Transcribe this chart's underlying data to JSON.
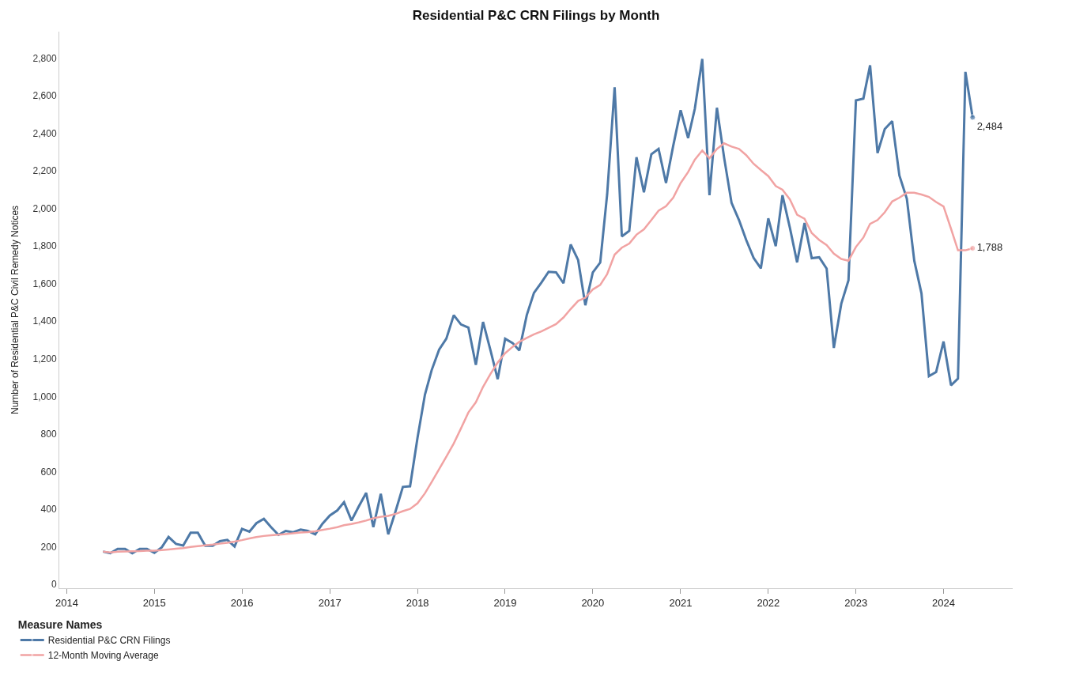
{
  "chart_data": {
    "type": "line",
    "title": "Residential P&C CRN Filings by Month",
    "ylabel": "Number of Residential P&C Civil Remedy Notices",
    "legend_title": "Measure Names",
    "x": [
      "2014-06",
      "2014-07",
      "2014-08",
      "2014-09",
      "2014-10",
      "2014-11",
      "2014-12",
      "2015-01",
      "2015-02",
      "2015-03",
      "2015-04",
      "2015-05",
      "2015-06",
      "2015-07",
      "2015-08",
      "2015-09",
      "2015-10",
      "2015-11",
      "2015-12",
      "2016-01",
      "2016-02",
      "2016-03",
      "2016-04",
      "2016-05",
      "2016-06",
      "2016-07",
      "2016-08",
      "2016-09",
      "2016-10",
      "2016-11",
      "2016-12",
      "2017-01",
      "2017-02",
      "2017-03",
      "2017-04",
      "2017-05",
      "2017-06",
      "2017-07",
      "2017-08",
      "2017-09",
      "2017-10",
      "2017-11",
      "2017-12",
      "2018-01",
      "2018-02",
      "2018-03",
      "2018-04",
      "2018-05",
      "2018-06",
      "2018-07",
      "2018-08",
      "2018-09",
      "2018-10",
      "2018-11",
      "2018-12",
      "2019-01",
      "2019-02",
      "2019-03",
      "2019-04",
      "2019-05",
      "2019-06",
      "2019-07",
      "2019-08",
      "2019-09",
      "2019-10",
      "2019-11",
      "2019-12",
      "2020-01",
      "2020-02",
      "2020-03",
      "2020-04",
      "2020-05",
      "2020-06",
      "2020-07",
      "2020-08",
      "2020-09",
      "2020-10",
      "2020-11",
      "2020-12",
      "2021-01",
      "2021-02",
      "2021-03",
      "2021-04",
      "2021-05",
      "2021-06",
      "2021-07",
      "2021-08",
      "2021-09",
      "2021-10",
      "2021-11",
      "2021-12",
      "2022-01",
      "2022-02",
      "2022-03",
      "2022-04",
      "2022-05",
      "2022-06",
      "2022-07",
      "2022-08",
      "2022-09",
      "2022-10",
      "2022-11",
      "2022-12",
      "2023-01",
      "2023-02",
      "2023-03",
      "2023-04",
      "2023-05",
      "2023-06",
      "2023-07",
      "2023-08",
      "2023-09",
      "2023-10",
      "2023-11",
      "2023-12",
      "2024-01",
      "2024-02",
      "2024-03",
      "2024-04",
      "2024-05"
    ],
    "series": [
      {
        "name": "Residential P&C CRN Filings",
        "color": "#4e79a7",
        "values": [
          175,
          166,
          189,
          189,
          166,
          189,
          189,
          168,
          198,
          253,
          216,
          207,
          275,
          275,
          206,
          206,
          230,
          237,
          202,
          296,
          281,
          326,
          349,
          305,
          264,
          285,
          278,
          292,
          285,
          267,
          323,
          367,
          394,
          438,
          340,
          414,
          487,
          305,
          482,
          267,
          387,
          519,
          522,
          780,
          1010,
          1140,
          1249,
          1307,
          1432,
          1383,
          1366,
          1168,
          1396,
          1245,
          1092,
          1307,
          1284,
          1245,
          1432,
          1551,
          1606,
          1663,
          1660,
          1602,
          1808,
          1725,
          1485,
          1659,
          1712,
          2077,
          2644,
          1851,
          1881,
          2272,
          2086,
          2288,
          2316,
          2135,
          2333,
          2522,
          2374,
          2530,
          2795,
          2070,
          2535,
          2270,
          2029,
          1938,
          1832,
          1736,
          1681,
          1947,
          1799,
          2070,
          1897,
          1713,
          1922,
          1735,
          1740,
          1680,
          1258,
          1493,
          1618,
          2574,
          2584,
          2761,
          2294,
          2422,
          2464,
          2175,
          2052,
          1722,
          1548,
          1108,
          1130,
          1292,
          1059,
          1095,
          2726,
          2484
        ],
        "value_labels": [
          null,
          null,
          null,
          null,
          null,
          null,
          null,
          null,
          null,
          null,
          null,
          null,
          null,
          null,
          null,
          null,
          null,
          null,
          null,
          null,
          null,
          null,
          null,
          null,
          null,
          null,
          null,
          null,
          null,
          null,
          null,
          null,
          null,
          null,
          null,
          null,
          null,
          null,
          null,
          null,
          null,
          null,
          null,
          null,
          null,
          null,
          null,
          null,
          null,
          null,
          null,
          null,
          null,
          null,
          null,
          null,
          null,
          null,
          null,
          null,
          null,
          null,
          null,
          null,
          null,
          null,
          null,
          null,
          null,
          null,
          null,
          null,
          null,
          null,
          null,
          null,
          null,
          null,
          null,
          null,
          null,
          null,
          null,
          null,
          null,
          null,
          null,
          null,
          null,
          null,
          null,
          null,
          null,
          null,
          null,
          null,
          null,
          null,
          null,
          null,
          null,
          null,
          null,
          null,
          null,
          null,
          null,
          null,
          null,
          null,
          null,
          null,
          null,
          null,
          null,
          null,
          null,
          null,
          null,
          "2,484"
        ]
      },
      {
        "name": "12-Month Moving Average",
        "color": "#f1a3a3",
        "values": [
          175,
          170,
          174,
          176,
          177,
          178,
          180,
          180,
          183,
          186,
          190,
          193,
          200,
          204,
          208,
          212,
          217,
          222,
          228,
          236,
          245,
          252,
          258,
          262,
          265,
          268,
          272,
          276,
          279,
          283,
          290,
          297,
          305,
          315,
          322,
          330,
          340,
          352,
          360,
          365,
          375,
          390,
          402,
          432,
          485,
          545,
          613,
          680,
          750,
          830,
          915,
          969,
          1051,
          1120,
          1180,
          1230,
          1264,
          1290,
          1311,
          1330,
          1346,
          1365,
          1385,
          1420,
          1465,
          1508,
          1525,
          1569,
          1593,
          1651,
          1754,
          1791,
          1813,
          1860,
          1889,
          1938,
          1988,
          2012,
          2057,
          2135,
          2193,
          2259,
          2308,
          2267,
          2316,
          2346,
          2329,
          2316,
          2283,
          2237,
          2204,
          2172,
          2119,
          2099,
          2048,
          1966,
          1945,
          1869,
          1832,
          1805,
          1759,
          1731,
          1722,
          1795,
          1845,
          1918,
          1938,
          1979,
          2037,
          2057,
          2083,
          2083,
          2074,
          2061,
          2034,
          2010,
          1892,
          1777,
          1777,
          1788
        ],
        "value_labels": [
          null,
          null,
          null,
          null,
          null,
          null,
          null,
          null,
          null,
          null,
          null,
          null,
          null,
          null,
          null,
          null,
          null,
          null,
          null,
          null,
          null,
          null,
          null,
          null,
          null,
          null,
          null,
          null,
          null,
          null,
          null,
          null,
          null,
          null,
          null,
          null,
          null,
          null,
          null,
          null,
          null,
          null,
          null,
          null,
          null,
          null,
          null,
          null,
          null,
          null,
          null,
          null,
          null,
          null,
          null,
          null,
          null,
          null,
          null,
          null,
          null,
          null,
          null,
          null,
          null,
          null,
          null,
          null,
          null,
          null,
          null,
          null,
          null,
          null,
          null,
          null,
          null,
          null,
          null,
          null,
          null,
          null,
          null,
          null,
          null,
          null,
          null,
          null,
          null,
          null,
          null,
          null,
          null,
          null,
          null,
          null,
          null,
          null,
          null,
          null,
          null,
          null,
          null,
          null,
          null,
          null,
          null,
          null,
          null,
          null,
          null,
          null,
          null,
          null,
          null,
          null,
          null,
          null,
          null,
          "1,788"
        ]
      }
    ],
    "xlim": [
      "2013-12-01",
      "2024-10-15"
    ],
    "xticks": [
      "2014",
      "2015",
      "2016",
      "2017",
      "2018",
      "2019",
      "2020",
      "2021",
      "2022",
      "2023",
      "2024"
    ],
    "ylim": [
      -20,
      2940
    ],
    "yticks": [
      0,
      200,
      400,
      600,
      800,
      {
        "value": 1000,
        "label": "1,000"
      },
      {
        "value": 1200,
        "label": "1,200"
      },
      {
        "value": 1400,
        "label": "1,400"
      },
      {
        "value": 1600,
        "label": "1,600"
      },
      {
        "value": 1800,
        "label": "1,800"
      },
      {
        "value": 2000,
        "label": "2,000"
      },
      {
        "value": 2200,
        "label": "2,200"
      },
      {
        "value": 2400,
        "label": "2,400"
      },
      {
        "value": 2600,
        "label": "2,600"
      },
      {
        "value": 2800,
        "label": "2,800"
      }
    ],
    "grid": false,
    "legend": "bottom left",
    "marker": "none",
    "line_style": "solid"
  }
}
